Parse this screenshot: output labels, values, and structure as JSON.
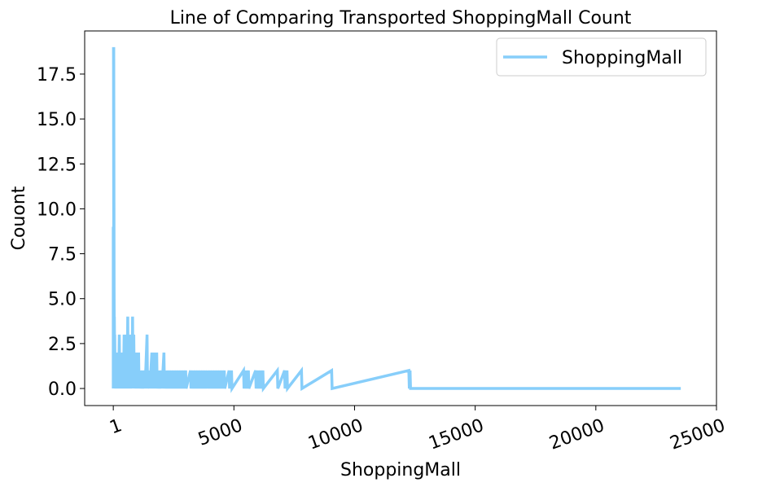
{
  "chart_data": {
    "type": "line",
    "title": "Line of Comparing Transported ShoppingMall Count",
    "xlabel": "ShoppingMall",
    "ylabel": "Couont",
    "xlim": [
      -1185,
      25000
    ],
    "ylim": [
      -0.95,
      19.9
    ],
    "xticks": [
      {
        "value": 1,
        "label": "1"
      },
      {
        "value": 5000,
        "label": "5000"
      },
      {
        "value": 10000,
        "label": "10000"
      },
      {
        "value": 15000,
        "label": "15000"
      },
      {
        "value": 20000,
        "label": "20000"
      },
      {
        "value": 25000,
        "label": "25000"
      }
    ],
    "yticks": [
      {
        "value": 0,
        "label": "0.0"
      },
      {
        "value": 2.5,
        "label": "2.5"
      },
      {
        "value": 5,
        "label": "5.0"
      },
      {
        "value": 7.5,
        "label": "7.5"
      },
      {
        "value": 10,
        "label": "10.0"
      },
      {
        "value": 12.5,
        "label": "12.5"
      },
      {
        "value": 15,
        "label": "15.0"
      },
      {
        "value": 17.5,
        "label": "17.5"
      }
    ],
    "grid": false,
    "legend_position": "top-right",
    "series": [
      {
        "name": "ShoppingMall",
        "color": "#87CEFA",
        "points": [
          [
            0,
            9
          ],
          [
            5,
            5
          ],
          [
            10,
            19
          ],
          [
            20,
            19
          ],
          [
            30,
            7
          ],
          [
            45,
            4
          ],
          [
            60,
            3
          ],
          [
            80,
            2
          ],
          [
            100,
            2
          ],
          [
            150,
            1
          ],
          [
            200,
            2
          ],
          [
            250,
            3
          ],
          [
            300,
            2
          ],
          [
            350,
            1
          ],
          [
            400,
            2
          ],
          [
            450,
            3
          ],
          [
            500,
            3
          ],
          [
            550,
            2
          ],
          [
            600,
            4
          ],
          [
            650,
            3
          ],
          [
            700,
            2
          ],
          [
            750,
            3
          ],
          [
            800,
            4
          ],
          [
            850,
            3
          ],
          [
            900,
            2
          ],
          [
            950,
            2
          ],
          [
            1000,
            2
          ],
          [
            1050,
            2
          ],
          [
            1100,
            1
          ],
          [
            1200,
            1
          ],
          [
            1300,
            1
          ],
          [
            1400,
            3
          ],
          [
            1500,
            1
          ],
          [
            1600,
            2
          ],
          [
            1700,
            2
          ],
          [
            1800,
            2
          ],
          [
            1900,
            1
          ],
          [
            2000,
            1
          ],
          [
            2100,
            2
          ],
          [
            2200,
            1
          ],
          [
            2300,
            1
          ],
          [
            2400,
            1
          ],
          [
            2500,
            1
          ],
          [
            2600,
            1
          ],
          [
            2700,
            1
          ],
          [
            2800,
            1
          ],
          [
            2900,
            1
          ],
          [
            3000,
            1
          ],
          [
            3200,
            1
          ],
          [
            3300,
            1
          ],
          [
            3400,
            1
          ],
          [
            3500,
            1
          ],
          [
            3600,
            1
          ],
          [
            3700,
            1
          ],
          [
            3800,
            1
          ],
          [
            3900,
            1
          ],
          [
            4000,
            1
          ],
          [
            4100,
            1
          ],
          [
            4200,
            1
          ],
          [
            4300,
            1
          ],
          [
            4400,
            1
          ],
          [
            4500,
            1
          ],
          [
            4600,
            1
          ],
          [
            4800,
            1
          ],
          [
            4900,
            1
          ],
          [
            5400,
            1
          ],
          [
            5500,
            1
          ],
          [
            5600,
            1
          ],
          [
            5900,
            1
          ],
          [
            6000,
            1
          ],
          [
            6100,
            1
          ],
          [
            6200,
            1
          ],
          [
            6800,
            1
          ],
          [
            7100,
            1
          ],
          [
            7200,
            1
          ],
          [
            7800,
            1
          ],
          [
            9050,
            1
          ],
          [
            12250,
            1
          ],
          [
            12300,
            1
          ],
          [
            23500,
            0
          ]
        ]
      }
    ]
  }
}
